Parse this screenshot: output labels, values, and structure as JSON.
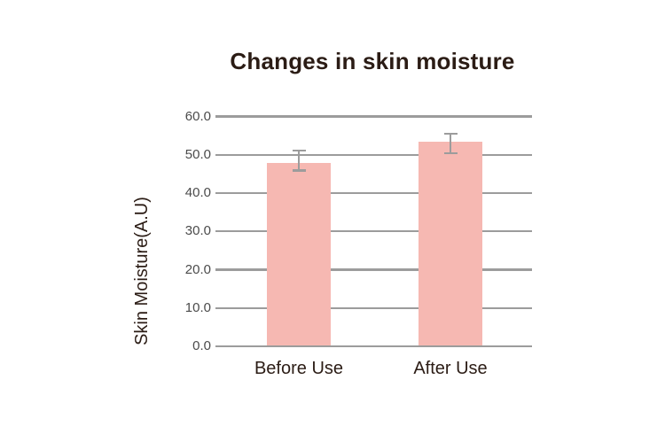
{
  "chart_data": {
    "type": "bar",
    "title": "Changes in skin moisture",
    "xlabel": "",
    "ylabel": "Skin Moisture(A.U)",
    "categories": [
      "Before Use",
      "After Use"
    ],
    "values": [
      47.9,
      53.3
    ],
    "error_high": [
      51.1,
      55.5
    ],
    "error_low": [
      45.9,
      50.4
    ],
    "ylim": [
      0,
      60
    ],
    "ytick_step": 10,
    "ytick_labels": [
      "0.0",
      "10.0",
      "20.0",
      "30.0",
      "40.0",
      "50.0",
      "60.0"
    ],
    "grid": "horizontal",
    "legend": "none",
    "colors": {
      "bar_fill": "#F6B8B2",
      "gridline": "#9C9C9C",
      "error_bar": "#9C9C9C",
      "title_text": "#2B1C15",
      "axis_label_text": "#2B1C15",
      "tick_text": "#4B4B4B",
      "background": "#FFFFFF"
    }
  }
}
